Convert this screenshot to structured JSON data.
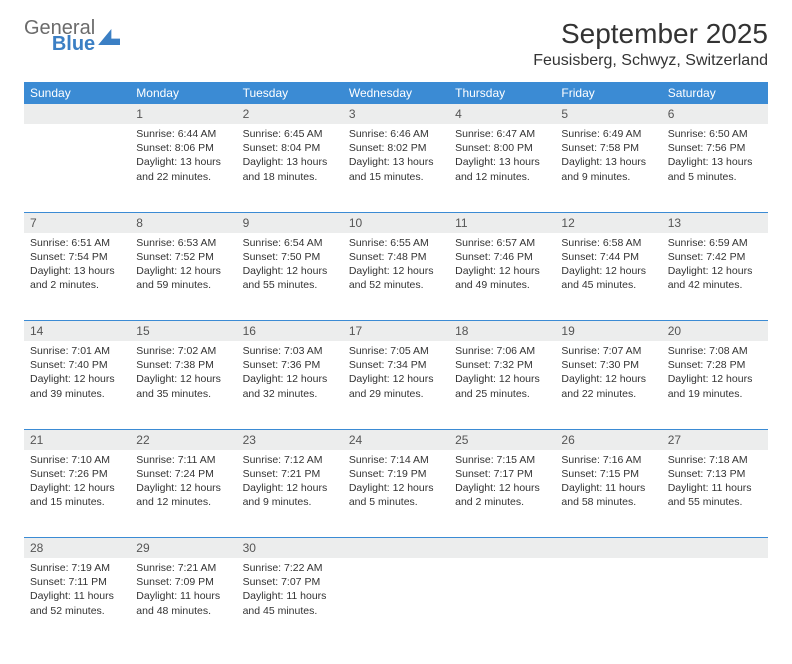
{
  "brand": {
    "name1": "General",
    "name2": "Blue",
    "name1_color": "#6b6b6b",
    "name2_color": "#3b7fc4"
  },
  "title": "September 2025",
  "location": "Feusisberg, Schwyz, Switzerland",
  "colors": {
    "header_bg": "#3b8bd4",
    "header_text": "#ffffff",
    "daynum_bg": "#eceded",
    "border": "#3b8bd4",
    "page_bg": "#ffffff",
    "text": "#333333"
  },
  "typography": {
    "title_fontsize": 28,
    "location_fontsize": 16,
    "weekday_fontsize": 12,
    "daynum_fontsize": 12,
    "cell_fontsize": 10.5
  },
  "weekdays": [
    "Sunday",
    "Monday",
    "Tuesday",
    "Wednesday",
    "Thursday",
    "Friday",
    "Saturday"
  ],
  "weeks": [
    [
      {
        "n": "",
        "sunrise": "",
        "sunset": "",
        "daylight": ""
      },
      {
        "n": "1",
        "sunrise": "Sunrise: 6:44 AM",
        "sunset": "Sunset: 8:06 PM",
        "daylight": "Daylight: 13 hours and 22 minutes."
      },
      {
        "n": "2",
        "sunrise": "Sunrise: 6:45 AM",
        "sunset": "Sunset: 8:04 PM",
        "daylight": "Daylight: 13 hours and 18 minutes."
      },
      {
        "n": "3",
        "sunrise": "Sunrise: 6:46 AM",
        "sunset": "Sunset: 8:02 PM",
        "daylight": "Daylight: 13 hours and 15 minutes."
      },
      {
        "n": "4",
        "sunrise": "Sunrise: 6:47 AM",
        "sunset": "Sunset: 8:00 PM",
        "daylight": "Daylight: 13 hours and 12 minutes."
      },
      {
        "n": "5",
        "sunrise": "Sunrise: 6:49 AM",
        "sunset": "Sunset: 7:58 PM",
        "daylight": "Daylight: 13 hours and 9 minutes."
      },
      {
        "n": "6",
        "sunrise": "Sunrise: 6:50 AM",
        "sunset": "Sunset: 7:56 PM",
        "daylight": "Daylight: 13 hours and 5 minutes."
      }
    ],
    [
      {
        "n": "7",
        "sunrise": "Sunrise: 6:51 AM",
        "sunset": "Sunset: 7:54 PM",
        "daylight": "Daylight: 13 hours and 2 minutes."
      },
      {
        "n": "8",
        "sunrise": "Sunrise: 6:53 AM",
        "sunset": "Sunset: 7:52 PM",
        "daylight": "Daylight: 12 hours and 59 minutes."
      },
      {
        "n": "9",
        "sunrise": "Sunrise: 6:54 AM",
        "sunset": "Sunset: 7:50 PM",
        "daylight": "Daylight: 12 hours and 55 minutes."
      },
      {
        "n": "10",
        "sunrise": "Sunrise: 6:55 AM",
        "sunset": "Sunset: 7:48 PM",
        "daylight": "Daylight: 12 hours and 52 minutes."
      },
      {
        "n": "11",
        "sunrise": "Sunrise: 6:57 AM",
        "sunset": "Sunset: 7:46 PM",
        "daylight": "Daylight: 12 hours and 49 minutes."
      },
      {
        "n": "12",
        "sunrise": "Sunrise: 6:58 AM",
        "sunset": "Sunset: 7:44 PM",
        "daylight": "Daylight: 12 hours and 45 minutes."
      },
      {
        "n": "13",
        "sunrise": "Sunrise: 6:59 AM",
        "sunset": "Sunset: 7:42 PM",
        "daylight": "Daylight: 12 hours and 42 minutes."
      }
    ],
    [
      {
        "n": "14",
        "sunrise": "Sunrise: 7:01 AM",
        "sunset": "Sunset: 7:40 PM",
        "daylight": "Daylight: 12 hours and 39 minutes."
      },
      {
        "n": "15",
        "sunrise": "Sunrise: 7:02 AM",
        "sunset": "Sunset: 7:38 PM",
        "daylight": "Daylight: 12 hours and 35 minutes."
      },
      {
        "n": "16",
        "sunrise": "Sunrise: 7:03 AM",
        "sunset": "Sunset: 7:36 PM",
        "daylight": "Daylight: 12 hours and 32 minutes."
      },
      {
        "n": "17",
        "sunrise": "Sunrise: 7:05 AM",
        "sunset": "Sunset: 7:34 PM",
        "daylight": "Daylight: 12 hours and 29 minutes."
      },
      {
        "n": "18",
        "sunrise": "Sunrise: 7:06 AM",
        "sunset": "Sunset: 7:32 PM",
        "daylight": "Daylight: 12 hours and 25 minutes."
      },
      {
        "n": "19",
        "sunrise": "Sunrise: 7:07 AM",
        "sunset": "Sunset: 7:30 PM",
        "daylight": "Daylight: 12 hours and 22 minutes."
      },
      {
        "n": "20",
        "sunrise": "Sunrise: 7:08 AM",
        "sunset": "Sunset: 7:28 PM",
        "daylight": "Daylight: 12 hours and 19 minutes."
      }
    ],
    [
      {
        "n": "21",
        "sunrise": "Sunrise: 7:10 AM",
        "sunset": "Sunset: 7:26 PM",
        "daylight": "Daylight: 12 hours and 15 minutes."
      },
      {
        "n": "22",
        "sunrise": "Sunrise: 7:11 AM",
        "sunset": "Sunset: 7:24 PM",
        "daylight": "Daylight: 12 hours and 12 minutes."
      },
      {
        "n": "23",
        "sunrise": "Sunrise: 7:12 AM",
        "sunset": "Sunset: 7:21 PM",
        "daylight": "Daylight: 12 hours and 9 minutes."
      },
      {
        "n": "24",
        "sunrise": "Sunrise: 7:14 AM",
        "sunset": "Sunset: 7:19 PM",
        "daylight": "Daylight: 12 hours and 5 minutes."
      },
      {
        "n": "25",
        "sunrise": "Sunrise: 7:15 AM",
        "sunset": "Sunset: 7:17 PM",
        "daylight": "Daylight: 12 hours and 2 minutes."
      },
      {
        "n": "26",
        "sunrise": "Sunrise: 7:16 AM",
        "sunset": "Sunset: 7:15 PM",
        "daylight": "Daylight: 11 hours and 58 minutes."
      },
      {
        "n": "27",
        "sunrise": "Sunrise: 7:18 AM",
        "sunset": "Sunset: 7:13 PM",
        "daylight": "Daylight: 11 hours and 55 minutes."
      }
    ],
    [
      {
        "n": "28",
        "sunrise": "Sunrise: 7:19 AM",
        "sunset": "Sunset: 7:11 PM",
        "daylight": "Daylight: 11 hours and 52 minutes."
      },
      {
        "n": "29",
        "sunrise": "Sunrise: 7:21 AM",
        "sunset": "Sunset: 7:09 PM",
        "daylight": "Daylight: 11 hours and 48 minutes."
      },
      {
        "n": "30",
        "sunrise": "Sunrise: 7:22 AM",
        "sunset": "Sunset: 7:07 PM",
        "daylight": "Daylight: 11 hours and 45 minutes."
      },
      {
        "n": "",
        "sunrise": "",
        "sunset": "",
        "daylight": ""
      },
      {
        "n": "",
        "sunrise": "",
        "sunset": "",
        "daylight": ""
      },
      {
        "n": "",
        "sunrise": "",
        "sunset": "",
        "daylight": ""
      },
      {
        "n": "",
        "sunrise": "",
        "sunset": "",
        "daylight": ""
      }
    ]
  ]
}
